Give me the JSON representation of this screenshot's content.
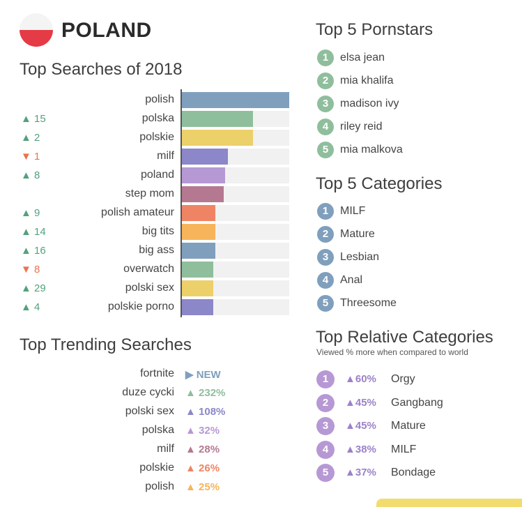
{
  "header": {
    "country": "POLAND"
  },
  "colors": {
    "flag_white": "#f4f4f4",
    "flag_red": "#e53b46",
    "up": "#52a27c",
    "down": "#e8734e"
  },
  "chart_data": {
    "type": "bar",
    "orientation": "horizontal",
    "title": "Top Searches of 2018",
    "categories": [
      "polish",
      "polska",
      "polskie",
      "milf",
      "poland",
      "step mom",
      "polish amateur",
      "big tits",
      "big ass",
      "overwatch",
      "polski sex",
      "polskie porno"
    ],
    "values": [
      100,
      66,
      66,
      43,
      40,
      39,
      31,
      31,
      31,
      29,
      29,
      29
    ],
    "xlim": [
      0,
      100
    ],
    "rank_changes": [
      {
        "dir": "",
        "value": ""
      },
      {
        "dir": "up",
        "value": "15"
      },
      {
        "dir": "up",
        "value": "2"
      },
      {
        "dir": "down",
        "value": "1"
      },
      {
        "dir": "up",
        "value": "8"
      },
      {
        "dir": "",
        "value": ""
      },
      {
        "dir": "up",
        "value": "9"
      },
      {
        "dir": "up",
        "value": "14"
      },
      {
        "dir": "up",
        "value": "16"
      },
      {
        "dir": "down",
        "value": "8"
      },
      {
        "dir": "up",
        "value": "29"
      },
      {
        "dir": "up",
        "value": "4"
      }
    ],
    "bar_colors": [
      "#7f9fbd",
      "#8fbe9c",
      "#ecd06a",
      "#8b87c8",
      "#b699d4",
      "#b57891",
      "#ef8464",
      "#f7b45b",
      "#7f9fbd",
      "#8fbe9c",
      "#ecd06a",
      "#8b87c8"
    ]
  },
  "trending": {
    "title": "Top Trending Searches",
    "items": [
      {
        "term": "fortnite",
        "value": "NEW",
        "icon": "play-arrow",
        "color": "#7f9fbd"
      },
      {
        "term": "duze cycki",
        "value": "232%",
        "icon": "up-triangle",
        "color": "#8fbe9c"
      },
      {
        "term": "polski sex",
        "value": "108%",
        "icon": "up-triangle",
        "color": "#8b87c8"
      },
      {
        "term": "polska",
        "value": "32%",
        "icon": "up-triangle",
        "color": "#b699d4"
      },
      {
        "term": "milf",
        "value": "28%",
        "icon": "up-triangle",
        "color": "#b57891"
      },
      {
        "term": "polskie",
        "value": "26%",
        "icon": "up-triangle",
        "color": "#ef8464"
      },
      {
        "term": "polish",
        "value": "25%",
        "icon": "up-triangle",
        "color": "#f7b45b"
      }
    ]
  },
  "pornstars": {
    "title": "Top 5 Pornstars",
    "color": "#8fbe9c",
    "items": [
      {
        "rank": "1",
        "name": "elsa jean"
      },
      {
        "rank": "2",
        "name": "mia khalifa"
      },
      {
        "rank": "3",
        "name": "madison ivy"
      },
      {
        "rank": "4",
        "name": "riley reid"
      },
      {
        "rank": "5",
        "name": "mia malkova"
      }
    ]
  },
  "categories": {
    "title": "Top 5 Categories",
    "color": "#7f9fbd",
    "items": [
      {
        "rank": "1",
        "name": "MILF"
      },
      {
        "rank": "2",
        "name": "Mature"
      },
      {
        "rank": "3",
        "name": "Lesbian"
      },
      {
        "rank": "4",
        "name": "Anal"
      },
      {
        "rank": "5",
        "name": "Threesome"
      }
    ]
  },
  "relative": {
    "title": "Top Relative Categories",
    "subtitle": "Viewed % more when compared to world",
    "color": "#b699d4",
    "items": [
      {
        "rank": "1",
        "pct": "60%",
        "name": "Orgy"
      },
      {
        "rank": "2",
        "pct": "45%",
        "name": "Gangbang"
      },
      {
        "rank": "3",
        "pct": "45%",
        "name": "Mature"
      },
      {
        "rank": "4",
        "pct": "38%",
        "name": "MILF"
      },
      {
        "rank": "5",
        "pct": "37%",
        "name": "Bondage"
      }
    ]
  }
}
